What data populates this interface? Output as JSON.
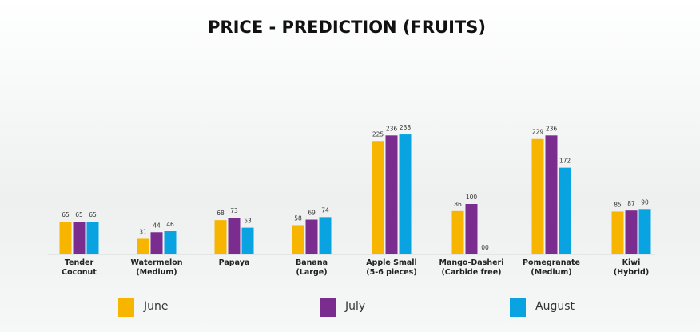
{
  "chart_data": {
    "type": "bar",
    "title": "PRICE -  PREDICTION (FRUITS)",
    "categories": [
      "Tender\nCoconut",
      "Watermelon\n(Medium)",
      "Papaya",
      "Banana\n(Large)",
      "Apple Small\n(5-6 pieces)",
      "Mango-Dasheri\n(Carbide free)",
      "Pomegranate\n(Medium)",
      "Kiwi\n(Hybrid)"
    ],
    "series": [
      {
        "name": "June",
        "color": "#f7b500",
        "values": [
          65,
          31,
          68,
          58,
          225,
          86,
          229,
          85
        ]
      },
      {
        "name": "July",
        "color": "#7a2c8f",
        "values": [
          65,
          44,
          73,
          69,
          236,
          100,
          236,
          87
        ]
      },
      {
        "name": "August",
        "color": "#0aa3e2",
        "values": [
          65,
          46,
          53,
          74,
          238,
          0,
          172,
          90
        ],
        "value_labels": [
          "65",
          "46",
          "53",
          "74",
          "238",
          "00",
          "172",
          "90"
        ]
      }
    ]
  }
}
